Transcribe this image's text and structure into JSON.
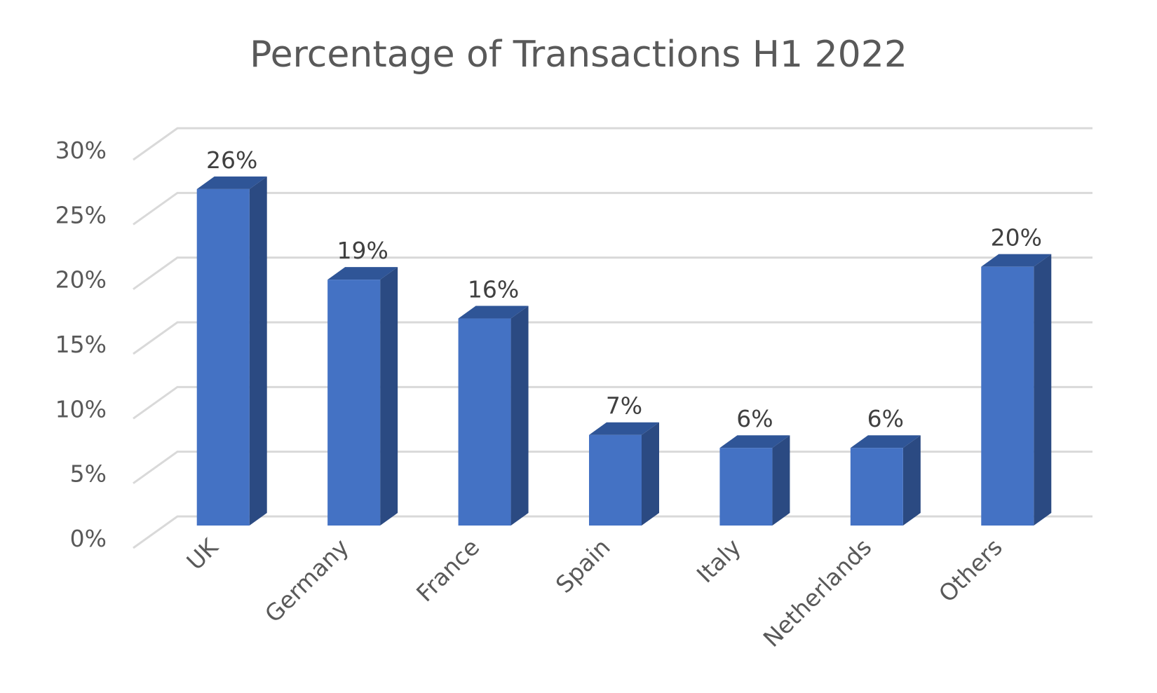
{
  "chart_data": {
    "type": "bar",
    "title": "Percentage of Transactions H1 2022",
    "categories": [
      "UK",
      "Germany",
      "France",
      "Spain",
      "Italy",
      "Netherlands",
      "Others"
    ],
    "values": [
      26,
      19,
      16,
      7,
      6,
      6,
      20
    ],
    "data_labels": [
      "26%",
      "19%",
      "16%",
      "7%",
      "6%",
      "6%",
      "20%"
    ],
    "y_ticks": [
      0,
      5,
      10,
      15,
      20,
      25,
      30
    ],
    "y_tick_labels": [
      "0%",
      "5%",
      "10%",
      "15%",
      "20%",
      "25%",
      "30%"
    ],
    "ylim": [
      0,
      30
    ],
    "xlabel": "",
    "ylabel": "",
    "grid": true,
    "legend": "none",
    "style": "3d-column",
    "colors": {
      "bar_front": "#4472c4",
      "bar_top": "#2f5597",
      "bar_side": "#2b4a82",
      "grid": "#d9d9d9",
      "axis_text": "#595959",
      "title_text": "#595959",
      "label_text": "#404040"
    }
  }
}
